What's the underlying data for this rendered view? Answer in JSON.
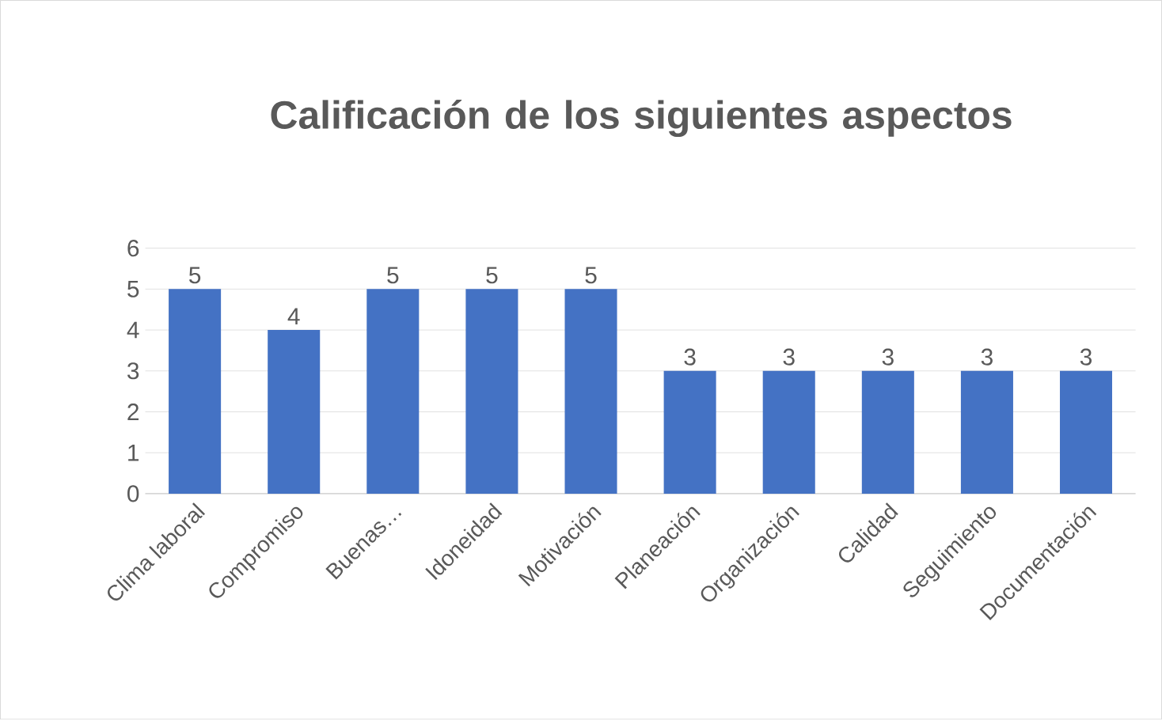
{
  "chart_data": {
    "type": "bar",
    "title": "Calificación de los siguientes aspectos",
    "categories": [
      "Clima laboral",
      "Compromiso",
      "Buenas…",
      "Idoneidad",
      "Motivación",
      "Planeación",
      "Organización",
      "Calidad",
      "Seguimiento",
      "Documentación"
    ],
    "values": [
      5,
      4,
      5,
      5,
      5,
      3,
      3,
      3,
      3,
      3
    ],
    "color": "#4472c4",
    "ylim": [
      0,
      6
    ],
    "yticks": [
      0,
      1,
      2,
      3,
      4,
      5,
      6
    ],
    "grid": "y",
    "data_labels": true
  }
}
